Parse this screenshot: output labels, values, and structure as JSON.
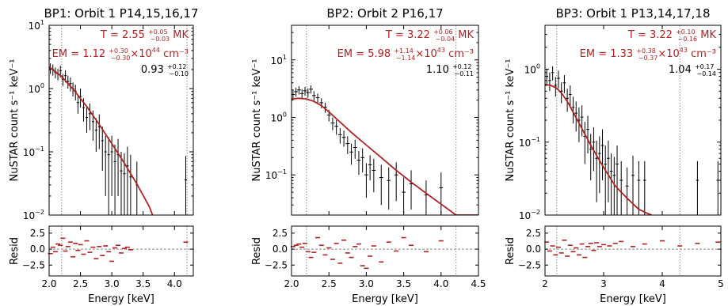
{
  "figure": {
    "panels_count": 3
  },
  "chart_data": [
    {
      "type": "scatter",
      "title": "BP1: Orbit 1 P14,15,16,17",
      "xlabel": "Energy [keV]",
      "ylabel": "NuSTAR count s⁻¹ keV⁻¹",
      "resid_label": "Resid",
      "xlim": [
        2.0,
        4.3
      ],
      "ylim": [
        0.01,
        10
      ],
      "y_scale": "log",
      "xticks": [
        2.0,
        2.5,
        3.0,
        3.5,
        4.0
      ],
      "xtick_labels": [
        "2.0",
        "2.5",
        "3.0",
        "3.5",
        "4.0"
      ],
      "yticks": [
        0.01,
        0.1,
        1,
        10
      ],
      "ytick_base": [
        "10",
        "10",
        "10",
        "10"
      ],
      "ytick_exp": [
        "−2",
        "−1",
        "0",
        "1"
      ],
      "vlines": [
        2.2,
        4.2
      ],
      "resid_ylim": [
        -4.2,
        3.6
      ],
      "resid_yticks": [
        2.5,
        0.0,
        -2.5
      ],
      "resid_ytick_labels": [
        "2.5",
        "0.0",
        "−2.5"
      ],
      "annotations": {
        "temp_main": "T = 2.55",
        "temp_up": "+0.05",
        "temp_dn": "−0.03",
        "temp_unit": "MK",
        "em_main": "EM = 1.12",
        "em_up": "+0.30",
        "em_dn": "−0.30",
        "em_mult": "×10",
        "em_exp": "44",
        "em_unit": "cm⁻³",
        "norm_main": "0.93",
        "norm_up": "+0.12",
        "norm_dn": "−0.10"
      },
      "model_color": "#b22222",
      "model": {
        "x": [
          2.0,
          2.2,
          2.4,
          2.6,
          2.8,
          3.0,
          3.2,
          3.4,
          3.6,
          3.65
        ],
        "y": [
          2.2,
          1.55,
          0.93,
          0.52,
          0.27,
          0.135,
          0.066,
          0.031,
          0.0135,
          0.01
        ]
      },
      "data_points": {
        "x": [
          2.02,
          2.06,
          2.1,
          2.14,
          2.18,
          2.22,
          2.26,
          2.3,
          2.34,
          2.38,
          2.42,
          2.46,
          2.5,
          2.55,
          2.6,
          2.65,
          2.7,
          2.75,
          2.8,
          2.85,
          2.9,
          2.95,
          3.0,
          3.05,
          3.1,
          3.15,
          3.2,
          3.25,
          3.3,
          3.4,
          4.18
        ],
        "y": [
          2.1,
          2.0,
          1.8,
          1.7,
          1.9,
          1.4,
          1.6,
          1.3,
          1.2,
          1.0,
          0.9,
          0.6,
          0.75,
          0.5,
          0.35,
          0.4,
          0.3,
          0.22,
          0.25,
          0.15,
          0.1,
          0.09,
          0.1,
          0.07,
          0.09,
          0.05,
          0.045,
          0.06,
          0.04,
          0.03,
          0.036
        ],
        "yerr_lo": [
          0.4,
          0.4,
          0.35,
          0.35,
          0.4,
          0.3,
          0.35,
          0.3,
          0.3,
          0.25,
          0.25,
          0.2,
          0.25,
          0.2,
          0.15,
          0.18,
          0.15,
          0.12,
          0.14,
          0.1,
          0.08,
          0.08,
          0.08,
          0.06,
          0.07,
          0.045,
          0.04,
          0.05,
          0.036,
          0.028,
          0.034
        ],
        "yerr_hi": [
          0.4,
          0.4,
          0.35,
          0.35,
          0.4,
          0.3,
          0.35,
          0.3,
          0.3,
          0.25,
          0.25,
          0.2,
          0.25,
          0.2,
          0.15,
          0.18,
          0.15,
          0.12,
          0.14,
          0.1,
          0.08,
          0.08,
          0.08,
          0.06,
          0.07,
          0.05,
          0.05,
          0.06,
          0.05,
          0.04,
          0.05
        ],
        "xerr": 0.02
      },
      "residuals": {
        "x": [
          2.02,
          2.06,
          2.1,
          2.14,
          2.18,
          2.22,
          2.26,
          2.3,
          2.34,
          2.38,
          2.42,
          2.46,
          2.5,
          2.55,
          2.6,
          2.65,
          2.7,
          2.75,
          2.8,
          2.85,
          2.9,
          2.95,
          3.0,
          3.05,
          3.1,
          3.15,
          3.2,
          3.25,
          3.3,
          4.18
        ],
        "y": [
          -0.7,
          0.3,
          -0.4,
          0.8,
          0.6,
          1.7,
          -0.3,
          0.4,
          1.1,
          -1.2,
          0.9,
          -0.2,
          0.7,
          -0.8,
          1.3,
          -0.5,
          0.3,
          -1.5,
          0.4,
          -1.0,
          0.5,
          -0.4,
          -1.9,
          0.2,
          0.6,
          -0.6,
          0.1,
          0.3,
          -0.1,
          1.1
        ]
      }
    },
    {
      "type": "scatter",
      "title": "BP2: Orbit 2 P16,17",
      "xlabel": "Energy [keV]",
      "ylabel": "NuSTAR count s⁻¹ keV⁻¹",
      "resid_label": "Resid",
      "xlim": [
        2.0,
        4.5
      ],
      "ylim": [
        0.02,
        40
      ],
      "y_scale": "log",
      "xticks": [
        2.0,
        2.5,
        3.0,
        3.5,
        4.0,
        4.5
      ],
      "xtick_labels": [
        "2.0",
        "2.5",
        "3.0",
        "3.5",
        "4.0",
        "4.5"
      ],
      "yticks": [
        0.1,
        1,
        10
      ],
      "ytick_base": [
        "10",
        "10",
        "10"
      ],
      "ytick_exp": [
        "−1",
        "0",
        "1"
      ],
      "vlines": [
        2.2,
        4.2
      ],
      "resid_ylim": [
        -4.2,
        3.6
      ],
      "resid_yticks": [
        2.5,
        0.0,
        -2.5
      ],
      "resid_ytick_labels": [
        "2.5",
        "0.0",
        "−2.5"
      ],
      "annotations": {
        "temp_main": "T = 3.22",
        "temp_up": "+0.06",
        "temp_dn": "−0.04",
        "temp_unit": "MK",
        "em_main": "EM = 5.98",
        "em_up": "+1.14",
        "em_dn": "−1.14",
        "em_mult": "×10",
        "em_exp": "43",
        "em_unit": "cm⁻³",
        "norm_main": "1.10",
        "norm_up": "+0.12",
        "norm_dn": "−0.11"
      },
      "model_color": "#b22222",
      "model": {
        "x": [
          2.0,
          2.1,
          2.2,
          2.3,
          2.4,
          2.5,
          2.6,
          2.8,
          3.0,
          3.2,
          3.4,
          3.6,
          3.8,
          4.0,
          4.1,
          4.2,
          4.5
        ],
        "y": [
          2.1,
          2.15,
          2.1,
          1.9,
          1.6,
          1.25,
          0.95,
          0.55,
          0.33,
          0.2,
          0.12,
          0.075,
          0.048,
          0.031,
          0.025,
          0.02,
          0.02
        ]
      },
      "data_points": {
        "x": [
          2.02,
          2.06,
          2.1,
          2.14,
          2.18,
          2.22,
          2.26,
          2.3,
          2.35,
          2.4,
          2.45,
          2.5,
          2.55,
          2.6,
          2.65,
          2.7,
          2.75,
          2.8,
          2.85,
          2.9,
          2.95,
          3.0,
          3.05,
          3.1,
          3.2,
          3.3,
          3.4,
          3.5,
          3.6,
          3.8,
          4.0
        ],
        "y": [
          2.5,
          2.8,
          3.0,
          2.6,
          2.9,
          2.7,
          3.1,
          2.4,
          2.2,
          1.8,
          1.5,
          1.1,
          0.8,
          0.7,
          0.5,
          0.45,
          0.35,
          0.25,
          0.3,
          0.18,
          0.2,
          0.1,
          0.15,
          0.12,
          0.09,
          0.08,
          0.1,
          0.05,
          0.07,
          0.045,
          0.06
        ],
        "yerr_lo": [
          0.5,
          0.5,
          0.5,
          0.5,
          0.5,
          0.5,
          0.5,
          0.45,
          0.4,
          0.35,
          0.3,
          0.25,
          0.2,
          0.2,
          0.15,
          0.14,
          0.12,
          0.1,
          0.11,
          0.08,
          0.09,
          0.06,
          0.07,
          0.07,
          0.06,
          0.055,
          0.065,
          0.03,
          0.045,
          0.025,
          0.04
        ],
        "yerr_hi": [
          0.5,
          0.5,
          0.5,
          0.5,
          0.5,
          0.5,
          0.5,
          0.45,
          0.4,
          0.35,
          0.3,
          0.25,
          0.2,
          0.2,
          0.15,
          0.14,
          0.12,
          0.1,
          0.11,
          0.08,
          0.09,
          0.06,
          0.07,
          0.07,
          0.06,
          0.055,
          0.065,
          0.04,
          0.05,
          0.035,
          0.05
        ],
        "xerr": 0.025
      },
      "residuals": {
        "x": [
          2.02,
          2.06,
          2.1,
          2.14,
          2.18,
          2.22,
          2.26,
          2.3,
          2.35,
          2.4,
          2.45,
          2.5,
          2.55,
          2.6,
          2.65,
          2.7,
          2.75,
          2.8,
          2.85,
          2.9,
          2.95,
          3.0,
          3.05,
          3.1,
          3.2,
          3.3,
          3.4,
          3.5,
          3.6,
          3.8,
          4.0
        ],
        "y": [
          0.4,
          0.6,
          0.8,
          0.3,
          0.9,
          -0.4,
          -1.3,
          -0.5,
          1.8,
          0.6,
          -0.9,
          0.2,
          -1.6,
          0.9,
          -2.2,
          1.4,
          -0.6,
          -1.3,
          0.4,
          0.8,
          -2.6,
          -3.0,
          -1.1,
          0.5,
          -2.0,
          1.1,
          -0.3,
          1.8,
          0.6,
          -0.4,
          1.3
        ]
      }
    },
    {
      "type": "scatter",
      "title": "BP3: Orbit 1 P13,14,17,18",
      "xlabel": "Energy [keV]",
      "ylabel": "NuSTAR count s⁻¹ keV⁻¹",
      "resid_label": "Resid",
      "xlim": [
        2.0,
        5.0
      ],
      "ylim": [
        0.01,
        4
      ],
      "y_scale": "log",
      "xticks": [
        2,
        3,
        4,
        5
      ],
      "xtick_labels": [
        "2",
        "3",
        "4",
        "5"
      ],
      "yticks": [
        0.01,
        0.1,
        1
      ],
      "ytick_base": [
        "10",
        "10",
        "10"
      ],
      "ytick_exp": [
        "−2",
        "−1",
        "0"
      ],
      "vlines": [
        2.2,
        4.3
      ],
      "resid_ylim": [
        -4.2,
        3.6
      ],
      "resid_yticks": [
        2.5,
        0.0,
        -2.5
      ],
      "resid_ytick_labels": [
        "2.5",
        "0.0",
        "−2.5"
      ],
      "annotations": {
        "temp_main": "T = 3.22",
        "temp_up": "+0.10",
        "temp_dn": "−0.16",
        "temp_unit": "MK",
        "em_main": "EM = 1.33",
        "em_up": "+0.38",
        "em_dn": "−0.37",
        "em_mult": "×10",
        "em_exp": "43",
        "em_unit": "cm⁻³",
        "norm_main": "1.04",
        "norm_up": "+0.17",
        "norm_dn": "−0.14"
      },
      "model_color": "#b22222",
      "model": {
        "x": [
          2.0,
          2.1,
          2.2,
          2.3,
          2.4,
          2.5,
          2.6,
          2.8,
          3.0,
          3.2,
          3.4,
          3.6,
          3.75,
          3.82
        ],
        "y": [
          0.62,
          0.6,
          0.55,
          0.45,
          0.34,
          0.24,
          0.17,
          0.085,
          0.045,
          0.025,
          0.017,
          0.012,
          0.0105,
          0.01
        ]
      },
      "data_points": {
        "x": [
          2.03,
          2.08,
          2.13,
          2.18,
          2.23,
          2.28,
          2.33,
          2.38,
          2.43,
          2.48,
          2.53,
          2.58,
          2.63,
          2.68,
          2.73,
          2.78,
          2.83,
          2.88,
          2.93,
          2.98,
          3.03,
          3.08,
          3.13,
          3.18,
          3.23,
          3.3,
          3.4,
          3.5,
          3.6,
          3.7,
          4.6,
          4.95
        ],
        "y": [
          0.8,
          0.7,
          0.9,
          0.6,
          0.75,
          0.5,
          0.65,
          0.4,
          0.45,
          0.3,
          0.25,
          0.2,
          0.22,
          0.12,
          0.15,
          0.08,
          0.1,
          0.06,
          0.07,
          0.09,
          0.05,
          0.06,
          0.04,
          0.035,
          0.05,
          0.03,
          0.025,
          0.035,
          0.03,
          0.03,
          0.03,
          0.03
        ],
        "yerr_lo": [
          0.2,
          0.2,
          0.2,
          0.18,
          0.2,
          0.16,
          0.18,
          0.14,
          0.15,
          0.12,
          0.11,
          0.1,
          0.1,
          0.07,
          0.08,
          0.05,
          0.06,
          0.045,
          0.05,
          0.06,
          0.04,
          0.045,
          0.03,
          0.028,
          0.04,
          0.025,
          0.02,
          0.028,
          0.025,
          0.025,
          0.022,
          0.022
        ],
        "yerr_hi": [
          0.2,
          0.2,
          0.2,
          0.18,
          0.2,
          0.16,
          0.18,
          0.14,
          0.15,
          0.12,
          0.11,
          0.1,
          0.1,
          0.07,
          0.08,
          0.05,
          0.06,
          0.045,
          0.05,
          0.06,
          0.04,
          0.045,
          0.03,
          0.028,
          0.04,
          0.025,
          0.02,
          0.03,
          0.025,
          0.025,
          0.025,
          0.025
        ],
        "xerr": 0.025
      },
      "residuals": {
        "x": [
          2.03,
          2.08,
          2.13,
          2.18,
          2.23,
          2.28,
          2.33,
          2.38,
          2.43,
          2.48,
          2.53,
          2.58,
          2.63,
          2.68,
          2.73,
          2.78,
          2.83,
          2.88,
          2.93,
          3.0,
          3.1,
          3.2,
          3.3,
          3.5,
          3.7,
          4.0,
          4.3,
          4.6,
          4.95
        ],
        "y": [
          1.1,
          -0.3,
          0.5,
          -0.9,
          0.3,
          -0.6,
          1.4,
          -1.1,
          0.6,
          -0.4,
          0.2,
          -0.9,
          0.8,
          -1.3,
          0.4,
          0.9,
          -0.2,
          1.0,
          0.4,
          0.7,
          0.5,
          0.9,
          1.2,
          0.4,
          0.8,
          1.3,
          0.5,
          0.9,
          1.1
        ]
      }
    }
  ]
}
